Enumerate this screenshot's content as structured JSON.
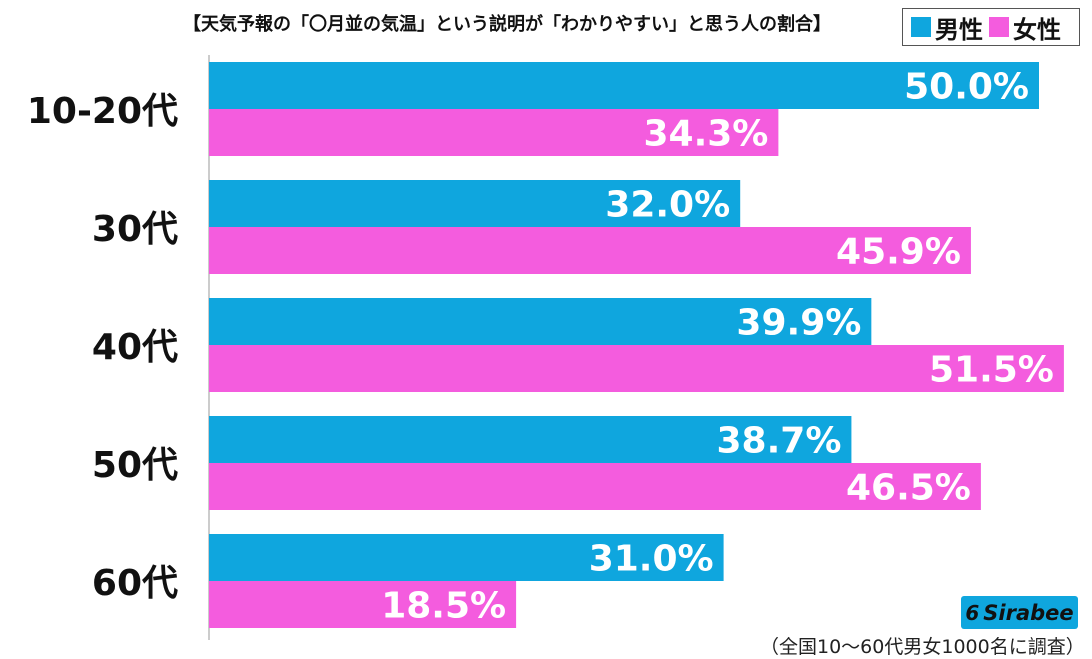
{
  "colors": {
    "male": "#0fa6de",
    "female": "#f45cde"
  },
  "legend": {
    "male_label": "男性",
    "female_label": "女性"
  },
  "logo": {
    "mark": "6",
    "text": "Sirabee"
  },
  "footnote": "（全国10〜60代男女1000名に調査）",
  "chart_data": {
    "type": "bar",
    "orientation": "horizontal",
    "title": "【天気予報の「〇月並の気温」という説明が「わかりやすい」と思う人の割合】",
    "categories": [
      "10-20代",
      "30代",
      "40代",
      "50代",
      "60代"
    ],
    "series": [
      {
        "name": "男性",
        "values": [
          50.0,
          32.0,
          39.9,
          38.7,
          31.0
        ]
      },
      {
        "name": "女性",
        "values": [
          34.3,
          45.9,
          51.5,
          46.5,
          18.5
        ]
      }
    ],
    "value_labels": {
      "男性": [
        "50.0%",
        "32.0%",
        "39.9%",
        "38.7%",
        "31.0%"
      ],
      "女性": [
        "34.3%",
        "45.9%",
        "51.5%",
        "46.5%",
        "18.5%"
      ]
    },
    "xlim": [
      0,
      53
    ],
    "grid": false,
    "legend_position": "top-right"
  }
}
